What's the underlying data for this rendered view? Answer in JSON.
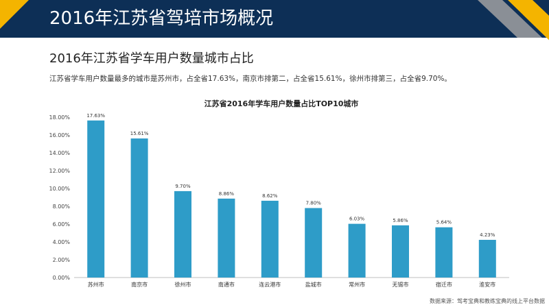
{
  "header": {
    "title": "2016年江苏省驾培市场概况"
  },
  "section": {
    "subtitle": "2016年江苏省学车用户数量城市占比",
    "description": "江苏省学车用户数量最多的城市是苏州市，占全省17.63%，南京市排第二，占全省15.61%，徐州市排第三，占全省9.70%。"
  },
  "colors": {
    "header": "#0d2f56",
    "accent": "#f4b400",
    "bar": "#2e9cc8"
  },
  "chart_data": {
    "type": "bar",
    "title": "江苏省2016年学车用户数量占比TOP10城市",
    "categories": [
      "苏州市",
      "南京市",
      "徐州市",
      "南通市",
      "连云港市",
      "盐城市",
      "常州市",
      "无锡市",
      "宿迁市",
      "淮安市"
    ],
    "values": [
      17.63,
      15.61,
      9.7,
      8.86,
      8.62,
      7.8,
      6.03,
      5.86,
      5.64,
      4.23
    ],
    "value_labels": [
      "17.63%",
      "15.61%",
      "9.70%",
      "8.86%",
      "8.62%",
      "7.80%",
      "6.03%",
      "5.86%",
      "5.64%",
      "4.23%"
    ],
    "y_ticks": [
      "0.00%",
      "2.00%",
      "4.00%",
      "6.00%",
      "8.00%",
      "10.00%",
      "12.00%",
      "14.00%",
      "16.00%",
      "18.00%"
    ],
    "ylim": [
      0,
      18
    ],
    "grid": false,
    "legend": "none"
  },
  "footer": {
    "source": "数据来源：驾考宝典和教练宝典的线上平台数据"
  }
}
